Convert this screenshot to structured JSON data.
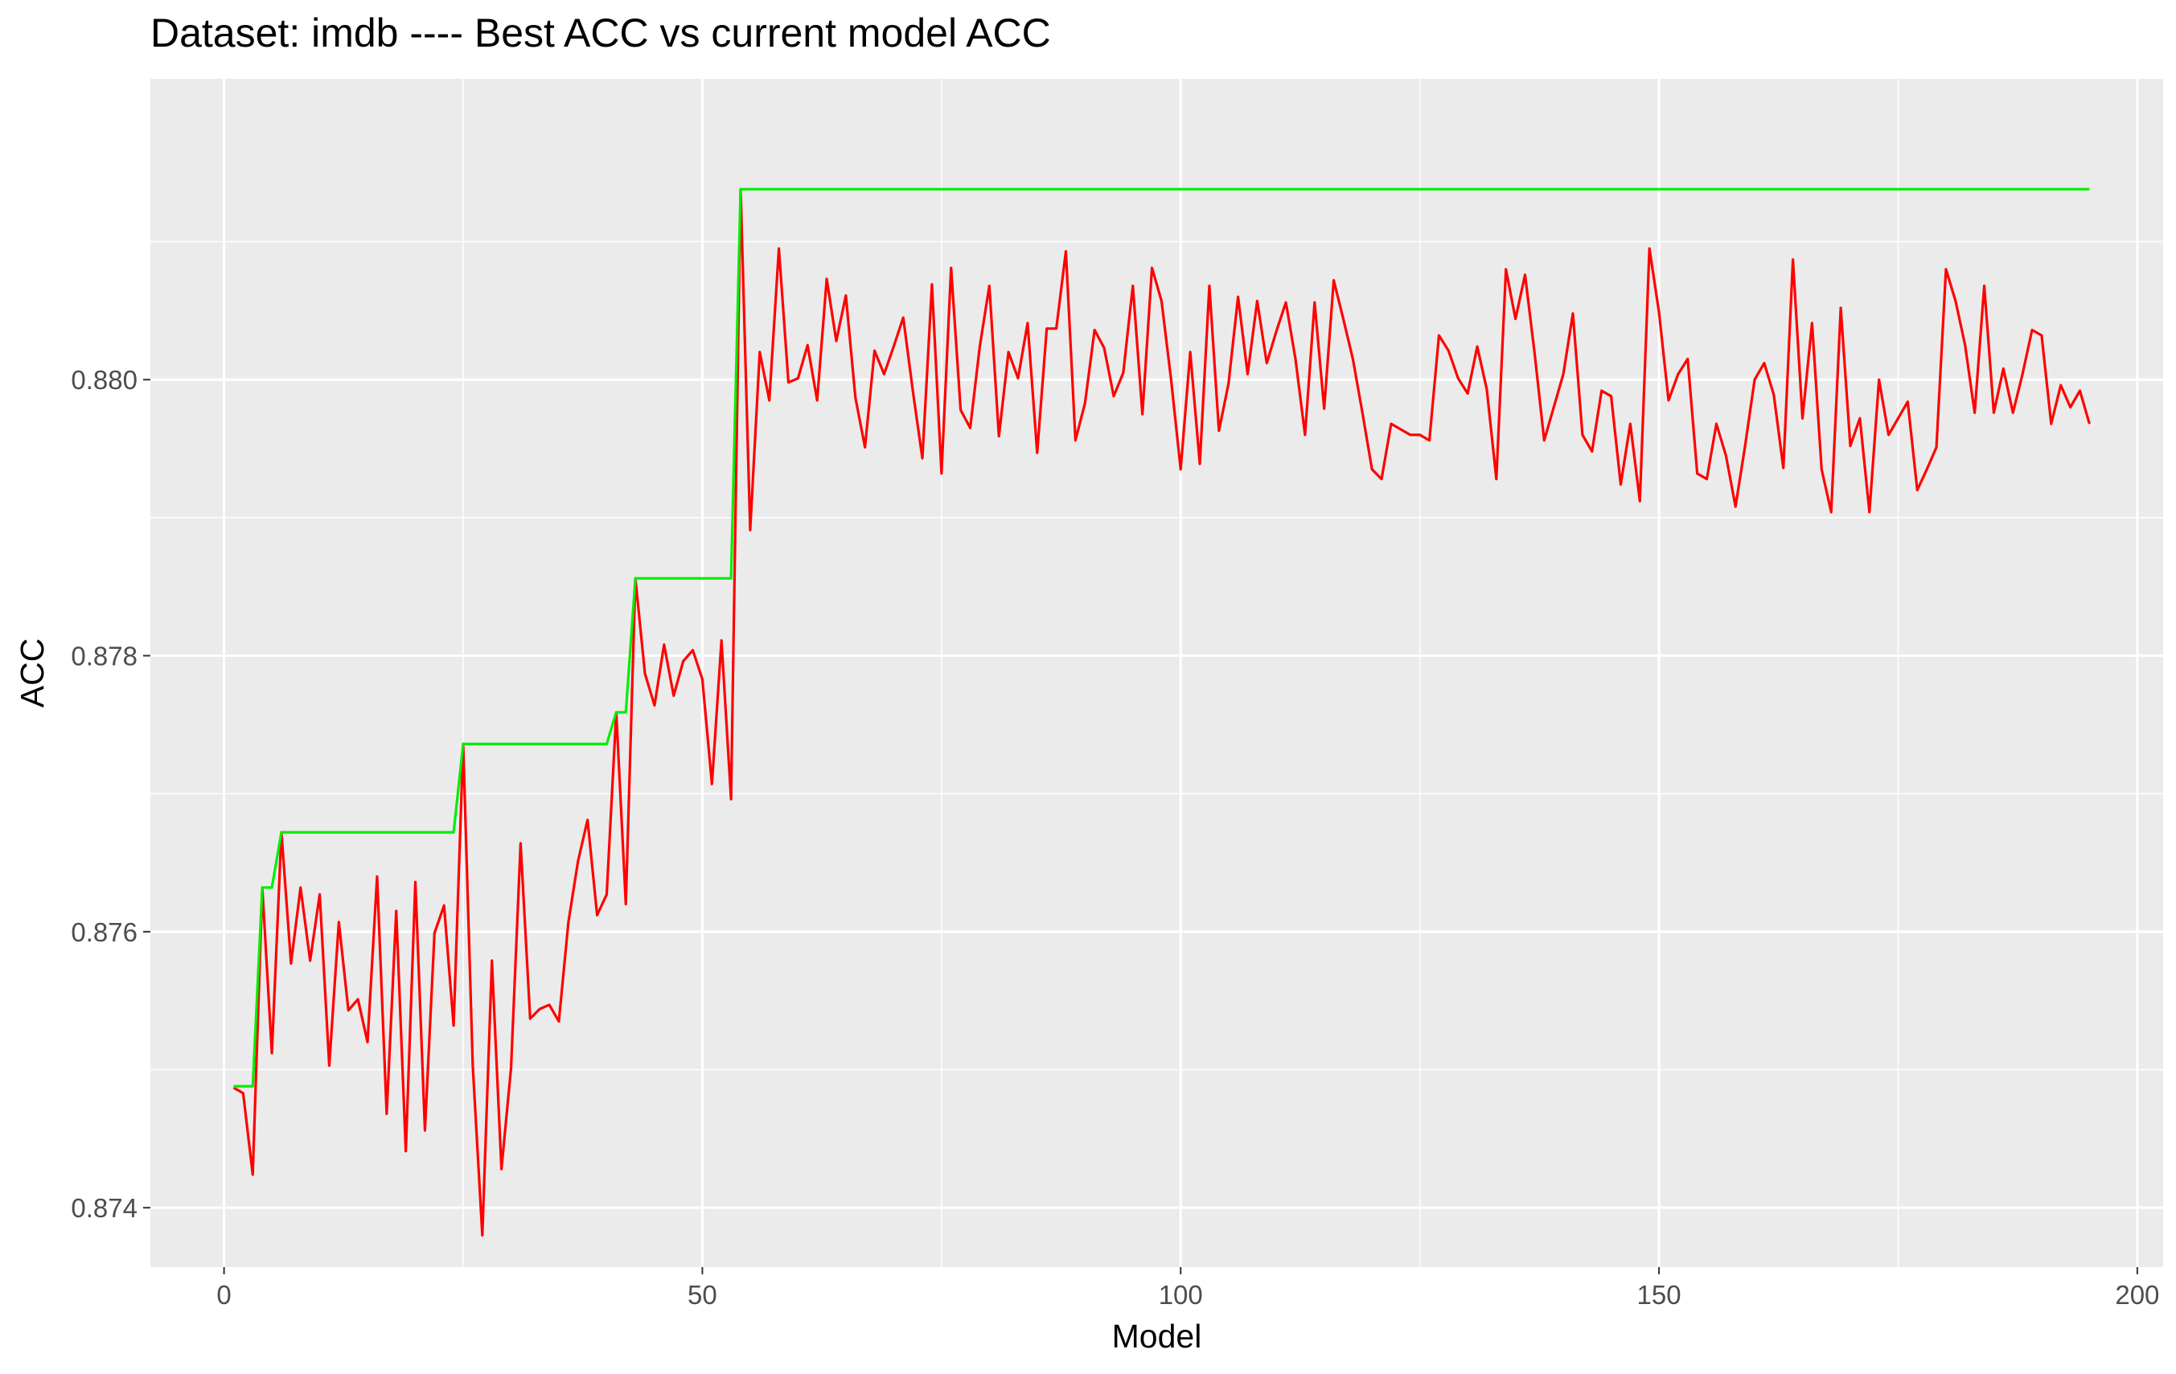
{
  "chart_data": {
    "type": "line",
    "title": "Dataset:  imdb  ---- Best ACC vs current model ACC",
    "xlabel": "Model",
    "ylabel": "ACC",
    "xlim": [
      -7.7,
      202.7
    ],
    "ylim": [
      0.87357,
      0.88218
    ],
    "x_ticks": [
      0,
      50,
      100,
      150,
      200
    ],
    "x_tick_labels": [
      "0",
      "50",
      "100",
      "150",
      "200"
    ],
    "y_ticks": [
      0.874,
      0.876,
      0.878,
      0.88
    ],
    "y_tick_labels": [
      "0.874",
      "0.876",
      "0.878",
      "0.880"
    ],
    "x_minor_ticks": [
      25,
      75,
      125,
      175
    ],
    "y_minor_ticks": [
      0.875,
      0.877,
      0.879,
      0.881
    ],
    "grid": true,
    "legend": "none",
    "series": [
      {
        "color": "#ff0000",
        "points": [
          [
            1,
            0.87487
          ],
          [
            2,
            0.87483
          ],
          [
            3,
            0.87424
          ],
          [
            4,
            0.87632
          ],
          [
            5,
            0.87512
          ],
          [
            6,
            0.87672
          ],
          [
            7,
            0.87577
          ],
          [
            8,
            0.87632
          ],
          [
            9,
            0.87579
          ],
          [
            10,
            0.87627
          ],
          [
            11,
            0.87503
          ],
          [
            12,
            0.87607
          ],
          [
            13,
            0.87543
          ],
          [
            14,
            0.87551
          ],
          [
            15,
            0.8752
          ],
          [
            16,
            0.8764
          ],
          [
            17,
            0.87468
          ],
          [
            18,
            0.87615
          ],
          [
            19,
            0.87441
          ],
          [
            20,
            0.87636
          ],
          [
            21,
            0.87456
          ],
          [
            22,
            0.87599
          ],
          [
            23,
            0.87619
          ],
          [
            24,
            0.87532
          ],
          [
            25,
            0.87736
          ],
          [
            26,
            0.87503
          ],
          [
            27,
            0.8738
          ],
          [
            28,
            0.87579
          ],
          [
            29,
            0.87428
          ],
          [
            30,
            0.87501
          ],
          [
            31,
            0.87664
          ],
          [
            32,
            0.87537
          ],
          [
            33,
            0.87544
          ],
          [
            34,
            0.87547
          ],
          [
            35,
            0.87535
          ],
          [
            36,
            0.87607
          ],
          [
            37,
            0.87651
          ],
          [
            38,
            0.87681
          ],
          [
            39,
            0.87612
          ],
          [
            40,
            0.87627
          ],
          [
            41,
            0.87759
          ],
          [
            42,
            0.8762
          ],
          [
            43,
            0.87856
          ],
          [
            44,
            0.87787
          ],
          [
            45,
            0.87764
          ],
          [
            46,
            0.87808
          ],
          [
            47,
            0.87771
          ],
          [
            48,
            0.87796
          ],
          [
            49,
            0.87804
          ],
          [
            50,
            0.87783
          ],
          [
            51,
            0.87707
          ],
          [
            52,
            0.87811
          ],
          [
            53,
            0.87696
          ],
          [
            54,
            0.88138
          ],
          [
            55,
            0.87891
          ],
          [
            56,
            0.8802
          ],
          [
            57,
            0.87985
          ],
          [
            58,
            0.88095
          ],
          [
            59,
            0.87998
          ],
          [
            60,
            0.88001
          ],
          [
            61,
            0.88025
          ],
          [
            62,
            0.87985
          ],
          [
            63,
            0.88073
          ],
          [
            64,
            0.88028
          ],
          [
            65,
            0.88061
          ],
          [
            66,
            0.87987
          ],
          [
            67,
            0.87951
          ],
          [
            68,
            0.88021
          ],
          [
            69,
            0.88004
          ],
          [
            70,
            0.88024
          ],
          [
            71,
            0.88045
          ],
          [
            72,
            0.87992
          ],
          [
            73,
            0.87943
          ],
          [
            74,
            0.88069
          ],
          [
            75,
            0.87932
          ],
          [
            76,
            0.88081
          ],
          [
            77,
            0.87978
          ],
          [
            78,
            0.87965
          ],
          [
            79,
            0.88024
          ],
          [
            80,
            0.88068
          ],
          [
            81,
            0.87959
          ],
          [
            82,
            0.8802
          ],
          [
            83,
            0.88001
          ],
          [
            84,
            0.88041
          ],
          [
            85,
            0.87947
          ],
          [
            86,
            0.88037
          ],
          [
            87,
            0.88037
          ],
          [
            88,
            0.88093
          ],
          [
            89,
            0.87956
          ],
          [
            90,
            0.87983
          ],
          [
            91,
            0.88036
          ],
          [
            92,
            0.88023
          ],
          [
            93,
            0.87988
          ],
          [
            94,
            0.88005
          ],
          [
            95,
            0.88068
          ],
          [
            96,
            0.87975
          ],
          [
            97,
            0.88081
          ],
          [
            98,
            0.88057
          ],
          [
            99,
            0.88
          ],
          [
            100,
            0.87935
          ],
          [
            101,
            0.8802
          ],
          [
            102,
            0.87939
          ],
          [
            103,
            0.88068
          ],
          [
            104,
            0.87963
          ],
          [
            105,
            0.87997
          ],
          [
            106,
            0.8806
          ],
          [
            107,
            0.88004
          ],
          [
            108,
            0.88057
          ],
          [
            109,
            0.88012
          ],
          [
            110,
            0.88035
          ],
          [
            111,
            0.88056
          ],
          [
            112,
            0.88015
          ],
          [
            113,
            0.8796
          ],
          [
            114,
            0.88056
          ],
          [
            115,
            0.87979
          ],
          [
            116,
            0.88072
          ],
          [
            117,
            0.88044
          ],
          [
            118,
            0.88015
          ],
          [
            119,
            0.87976
          ],
          [
            120,
            0.87935
          ],
          [
            121,
            0.87928
          ],
          [
            122,
            0.87968
          ],
          [
            123,
            0.87964
          ],
          [
            124,
            0.8796
          ],
          [
            125,
            0.8796
          ],
          [
            126,
            0.87956
          ],
          [
            127,
            0.88032
          ],
          [
            128,
            0.88021
          ],
          [
            129,
            0.88001
          ],
          [
            130,
            0.8799
          ],
          [
            131,
            0.88024
          ],
          [
            132,
            0.87993
          ],
          [
            133,
            0.87928
          ],
          [
            134,
            0.8808
          ],
          [
            135,
            0.88044
          ],
          [
            136,
            0.88076
          ],
          [
            137,
            0.88019
          ],
          [
            138,
            0.87956
          ],
          [
            139,
            0.8798
          ],
          [
            140,
            0.88004
          ],
          [
            141,
            0.88048
          ],
          [
            142,
            0.8796
          ],
          [
            143,
            0.87948
          ],
          [
            144,
            0.87992
          ],
          [
            145,
            0.87988
          ],
          [
            146,
            0.87924
          ],
          [
            147,
            0.87968
          ],
          [
            148,
            0.87912
          ],
          [
            149,
            0.88095
          ],
          [
            150,
            0.88049
          ],
          [
            151,
            0.87985
          ],
          [
            152,
            0.88004
          ],
          [
            153,
            0.88015
          ],
          [
            154,
            0.87932
          ],
          [
            155,
            0.87928
          ],
          [
            156,
            0.87968
          ],
          [
            157,
            0.87945
          ],
          [
            158,
            0.87908
          ],
          [
            159,
            0.87952
          ],
          [
            160,
            0.88
          ],
          [
            161,
            0.88012
          ],
          [
            162,
            0.87989
          ],
          [
            163,
            0.87936
          ],
          [
            164,
            0.88087
          ],
          [
            165,
            0.87972
          ],
          [
            166,
            0.88041
          ],
          [
            167,
            0.87935
          ],
          [
            168,
            0.87904
          ],
          [
            169,
            0.88052
          ],
          [
            170,
            0.87952
          ],
          [
            171,
            0.87972
          ],
          [
            172,
            0.87904
          ],
          [
            173,
            0.88
          ],
          [
            174,
            0.8796
          ],
          [
            175,
            0.87972
          ],
          [
            176,
            0.87984
          ],
          [
            177,
            0.8792
          ],
          [
            178,
            0.87935
          ],
          [
            179,
            0.87951
          ],
          [
            180,
            0.8808
          ],
          [
            181,
            0.88057
          ],
          [
            182,
            0.88025
          ],
          [
            183,
            0.87976
          ],
          [
            184,
            0.88068
          ],
          [
            185,
            0.87976
          ],
          [
            186,
            0.88008
          ],
          [
            187,
            0.87976
          ],
          [
            188,
            0.88004
          ],
          [
            189,
            0.88036
          ],
          [
            190,
            0.88032
          ],
          [
            191,
            0.87968
          ],
          [
            192,
            0.87996
          ],
          [
            193,
            0.8798
          ],
          [
            194,
            0.87992
          ],
          [
            195,
            0.87968
          ]
        ]
      },
      {
        "color": "#00ee00",
        "points": [
          [
            1,
            0.87488
          ],
          [
            3,
            0.87488
          ],
          [
            4,
            0.87632
          ],
          [
            5,
            0.87632
          ],
          [
            6,
            0.87672
          ],
          [
            24,
            0.87672
          ],
          [
            25,
            0.87736
          ],
          [
            40,
            0.87736
          ],
          [
            41,
            0.87759
          ],
          [
            42,
            0.87759
          ],
          [
            43,
            0.87856
          ],
          [
            53,
            0.87856
          ],
          [
            54,
            0.88138
          ],
          [
            195,
            0.88138
          ]
        ]
      }
    ]
  }
}
